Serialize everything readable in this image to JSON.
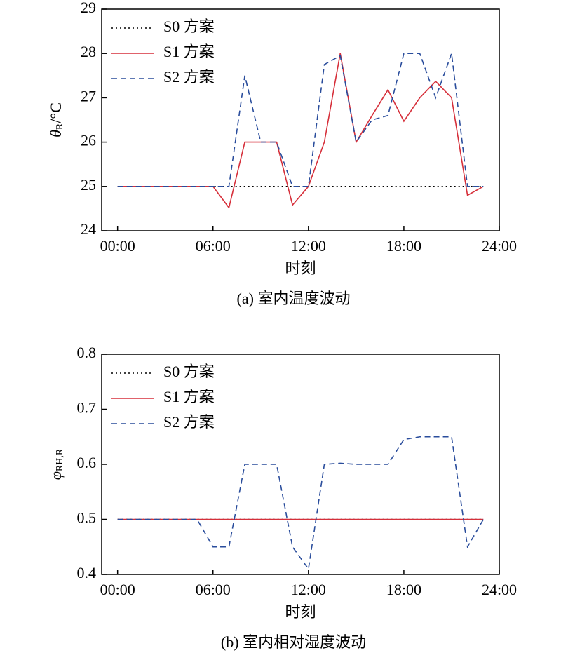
{
  "chart_data": [
    {
      "type": "line",
      "ylabel": [
        "θ",
        "R",
        "/°C"
      ],
      "xlabel": "时刻",
      "caption": "(a) 室内温度波动",
      "x": [
        0,
        1,
        2,
        3,
        4,
        5,
        6,
        7,
        8,
        9,
        10,
        11,
        12,
        13,
        14,
        15,
        16,
        17,
        18,
        19,
        20,
        21,
        22,
        23
      ],
      "series": [
        {
          "name": "S0 方案",
          "color": "#000000",
          "dash": "dotted",
          "values": [
            25,
            25,
            25,
            25,
            25,
            25,
            25,
            25,
            25,
            25,
            25,
            25,
            25,
            25,
            25,
            25,
            25,
            25,
            25,
            25,
            25,
            25,
            25,
            25
          ]
        },
        {
          "name": "S1 方案",
          "color": "#d62f3a",
          "dash": "solid",
          "values": [
            25,
            25,
            25,
            25,
            25,
            25,
            25,
            24.52,
            26,
            26,
            26,
            24.58,
            25,
            26,
            28,
            26,
            26.6,
            27.18,
            26.47,
            27,
            27.37,
            27,
            24.8,
            25
          ]
        },
        {
          "name": "S2 方案",
          "color": "#2a4d9c",
          "dash": "dashed",
          "values": [
            25,
            25,
            25,
            25,
            25,
            25,
            25,
            25,
            27.5,
            26,
            26,
            25,
            25,
            27.75,
            27.95,
            26,
            26.5,
            26.6,
            28,
            28,
            27,
            28,
            25,
            25
          ]
        }
      ],
      "xlim": [
        -1,
        24
      ],
      "xticks": [
        {
          "value": 0,
          "label": "00:00"
        },
        {
          "value": 6,
          "label": "06:00"
        },
        {
          "value": 12,
          "label": "12:00"
        },
        {
          "value": 18,
          "label": "18:00"
        },
        {
          "value": 24,
          "label": "24:00"
        }
      ],
      "ylim": [
        24,
        29
      ],
      "yticks": [
        24,
        25,
        26,
        27,
        28,
        29
      ],
      "legend": "upper left"
    },
    {
      "type": "line",
      "ylabel": [
        "φ",
        "RH,R"
      ],
      "xlabel": "时刻",
      "caption": "(b) 室内相对湿度波动",
      "x": [
        0,
        1,
        2,
        3,
        4,
        5,
        6,
        7,
        8,
        9,
        10,
        11,
        12,
        13,
        14,
        15,
        16,
        17,
        18,
        19,
        20,
        21,
        22,
        23
      ],
      "series": [
        {
          "name": "S0 方案",
          "color": "#000000",
          "dash": "dotted",
          "values": [
            0.5,
            0.5,
            0.5,
            0.5,
            0.5,
            0.5,
            0.5,
            0.5,
            0.5,
            0.5,
            0.5,
            0.5,
            0.5,
            0.5,
            0.5,
            0.5,
            0.5,
            0.5,
            0.5,
            0.5,
            0.5,
            0.5,
            0.5,
            0.5
          ]
        },
        {
          "name": "S1 方案",
          "color": "#d62f3a",
          "dash": "solid",
          "values": [
            0.5,
            0.5,
            0.5,
            0.5,
            0.5,
            0.5,
            0.5,
            0.5,
            0.5,
            0.5,
            0.5,
            0.5,
            0.5,
            0.5,
            0.5,
            0.5,
            0.5,
            0.5,
            0.5,
            0.5,
            0.5,
            0.5,
            0.5,
            0.5
          ]
        },
        {
          "name": "S2 方案",
          "color": "#2a4d9c",
          "dash": "dashed",
          "values": [
            0.5,
            0.5,
            0.5,
            0.5,
            0.5,
            0.5,
            0.45,
            0.45,
            0.6,
            0.6,
            0.6,
            0.45,
            0.41,
            0.6,
            0.602,
            0.6,
            0.6,
            0.6,
            0.645,
            0.65,
            0.65,
            0.65,
            0.45,
            0.5
          ]
        }
      ],
      "xlim": [
        -1,
        24
      ],
      "xticks": [
        {
          "value": 0,
          "label": "00:00"
        },
        {
          "value": 6,
          "label": "06:00"
        },
        {
          "value": 12,
          "label": "12:00"
        },
        {
          "value": 18,
          "label": "18:00"
        },
        {
          "value": 24,
          "label": "24:00"
        }
      ],
      "ylim": [
        0.4,
        0.8
      ],
      "yticks": [
        0.4,
        0.5,
        0.6,
        0.7,
        0.8
      ],
      "legend": "upper left"
    }
  ]
}
